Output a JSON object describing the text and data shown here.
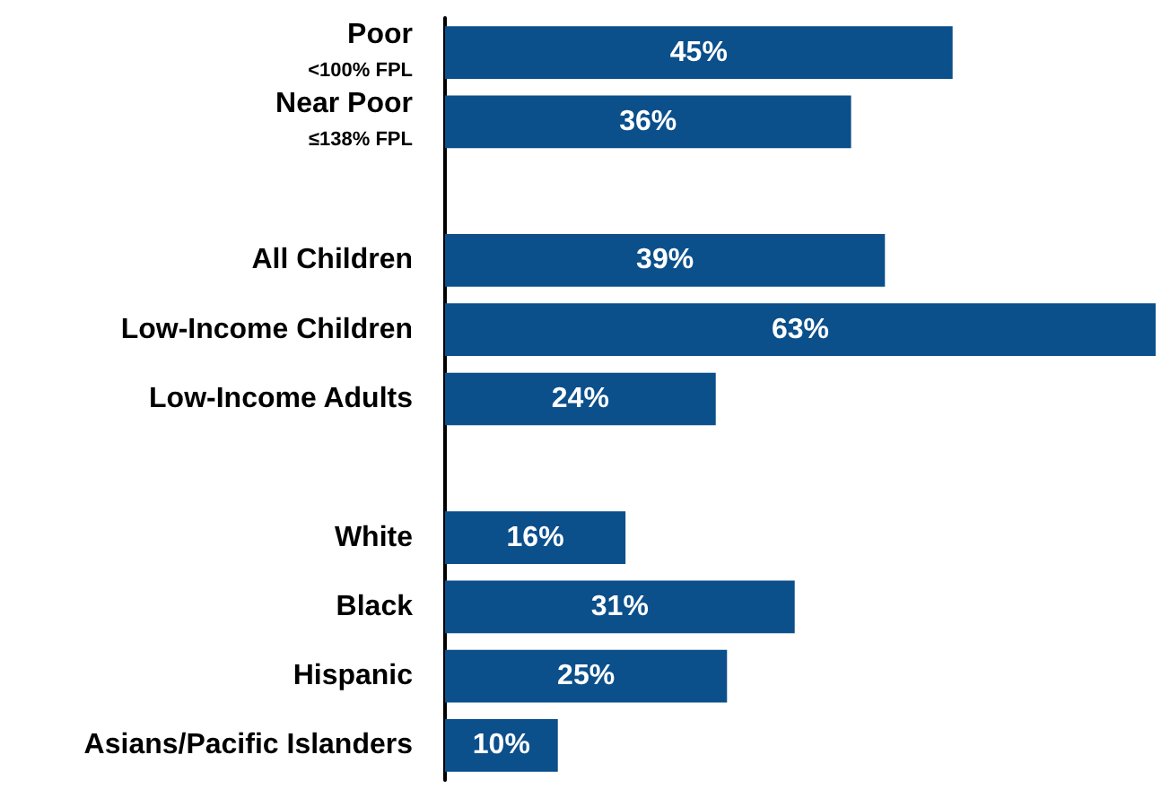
{
  "chart_data": {
    "type": "bar",
    "orientation": "horizontal",
    "categories": [
      "Poor\n<100% FPL",
      "Near Poor\n≤138% FPL",
      null,
      "All Children",
      "Low-Income Children",
      "Low-Income Adults",
      null,
      "White",
      "Black",
      "Hispanic",
      "Asians/Pacific Islanders"
    ],
    "values": [
      45,
      36,
      null,
      39,
      63,
      24,
      null,
      16,
      31,
      25,
      10
    ],
    "value_labels": [
      "45%",
      "36%",
      null,
      "39%",
      "63%",
      "24%",
      null,
      "16%",
      "31%",
      "25%",
      "10%"
    ],
    "color": "#0b4f8b"
  }
}
